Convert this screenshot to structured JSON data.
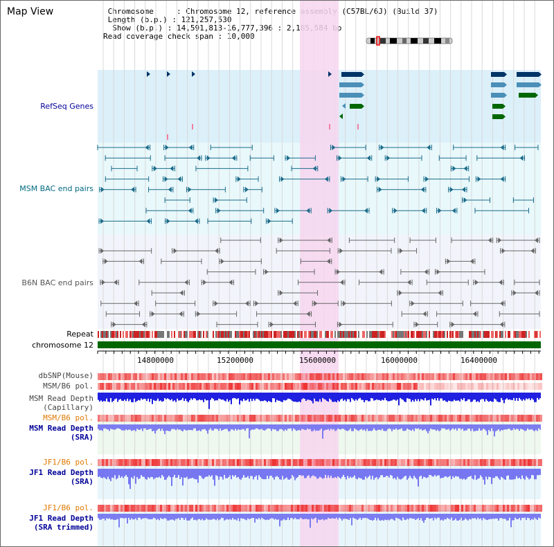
{
  "view_title": "Map View",
  "header": {
    "chromosome_label": "Chromosome",
    "chromosome_value": "Chromosome 12, reference assembly (C57BL/6J) (Build 37)",
    "length_label": "Length (b.p.)",
    "length_value": "121,257,530",
    "show_label": "Show (b.p.)",
    "show_value": "14,591,813-16,777,396 : 2,185,584 bp",
    "span_label": "Read coverage check span",
    "span_value": "10,000"
  },
  "colors": {
    "refseq_bg": "#dcf0fa",
    "msm_bac_bg": "#e8f8fb",
    "b6n_bac_bg": "#f2f4fb",
    "highlight": "#f7d6ef",
    "gene_dark": "#003366",
    "gene_mid": "#4a8fb8",
    "gene_green": "#006600",
    "msm_bac_line": "#1a6b8a",
    "b6n_bac_line": "#666666",
    "chromosome_bar": "#006600",
    "snp": "#f06060",
    "depth_blue": "#2020e0",
    "depth_light": "#7070f0",
    "label_blue": "#000099",
    "label_orange": "#e07800",
    "label_teal": "#006a80"
  },
  "tracks": {
    "refseq": "RefSeq Genes",
    "msm_bac": "MSM BAC end pairs",
    "b6n_bac": "B6N BAC end pairs",
    "repeat": "Repeat",
    "chromosome": "chromosome 12",
    "dbsnp": "dbSNP(Mouse)",
    "msm_b6_pol_1": "MSM/B6 pol.",
    "msm_depth_cap_1": "MSM Read Depth",
    "msm_depth_cap_2": "(Capillary)",
    "msm_b6_pol_2": "MSM/B6 pol.",
    "msm_depth_sra_1": "MSM Read Depth",
    "msm_depth_sra_2": "(SRA)",
    "jf1_b6_pol_1": "JF1/B6 pol.",
    "jf1_depth_sra_1": "JF1 Read Depth",
    "jf1_depth_sra_2": "(SRA)",
    "jf1_b6_pol_2": "JF1/B6 pol.",
    "jf1_depth_trim_1": "JF1 Read Depth",
    "jf1_depth_trim_2": "(SRA trimmed)"
  },
  "axis": {
    "ticks": [
      "14800000",
      "15200000",
      "15600000",
      "16000000",
      "16400000"
    ]
  }
}
